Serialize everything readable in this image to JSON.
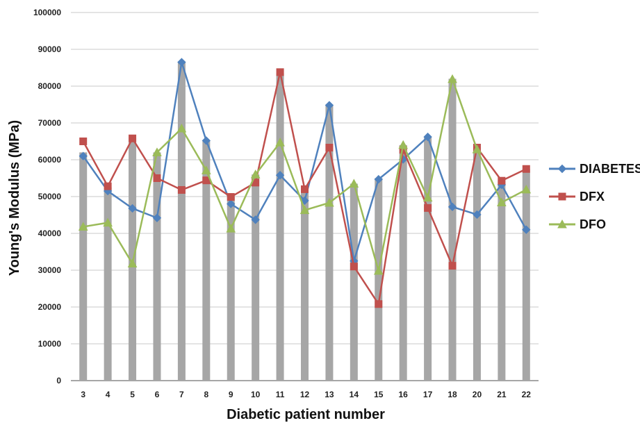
{
  "chart_data": {
    "type": "line",
    "title": "",
    "xlabel": "Diabetic patient number",
    "ylabel": "Young's Modulus (MPa)",
    "ylim": [
      0,
      100000
    ],
    "yticks": [
      0,
      10000,
      20000,
      30000,
      40000,
      50000,
      60000,
      70000,
      80000,
      90000,
      100000
    ],
    "grid": true,
    "legend_position": "right",
    "categories": [
      "3",
      "4",
      "5",
      "6",
      "7",
      "8",
      "9",
      "10",
      "11",
      "12",
      "13",
      "14",
      "15",
      "16",
      "17",
      "18",
      "20",
      "21",
      "22"
    ],
    "bars": {
      "color": "#a6a6a6",
      "values": [
        62000,
        52500,
        66000,
        62000,
        86500,
        65000,
        50000,
        56000,
        83500,
        52000,
        75000,
        53500,
        55000,
        64000,
        66000,
        82000,
        63500,
        54500,
        57500
      ]
    },
    "series": [
      {
        "name": "DIABETES",
        "color": "#4f81bd",
        "marker": "diamond",
        "values": [
          61000,
          51500,
          46800,
          44200,
          86500,
          65200,
          48000,
          43700,
          55800,
          48900,
          74800,
          32500,
          54700,
          60100,
          66200,
          47200,
          45100,
          53200,
          41000
        ]
      },
      {
        "name": "DFX",
        "color": "#c0504d",
        "marker": "square",
        "values": [
          65000,
          52800,
          65800,
          55000,
          51800,
          54400,
          49900,
          53800,
          83800,
          52000,
          63300,
          31000,
          20800,
          62700,
          46900,
          31200,
          63300,
          54300,
          57500
        ]
      },
      {
        "name": "DFO",
        "color": "#9bbb59",
        "marker": "triangle",
        "values": [
          41800,
          42900,
          31800,
          62000,
          68500,
          57100,
          41300,
          56000,
          64700,
          46300,
          48300,
          53500,
          29800,
          64000,
          49700,
          81900,
          62800,
          48400,
          51900
        ]
      }
    ]
  }
}
